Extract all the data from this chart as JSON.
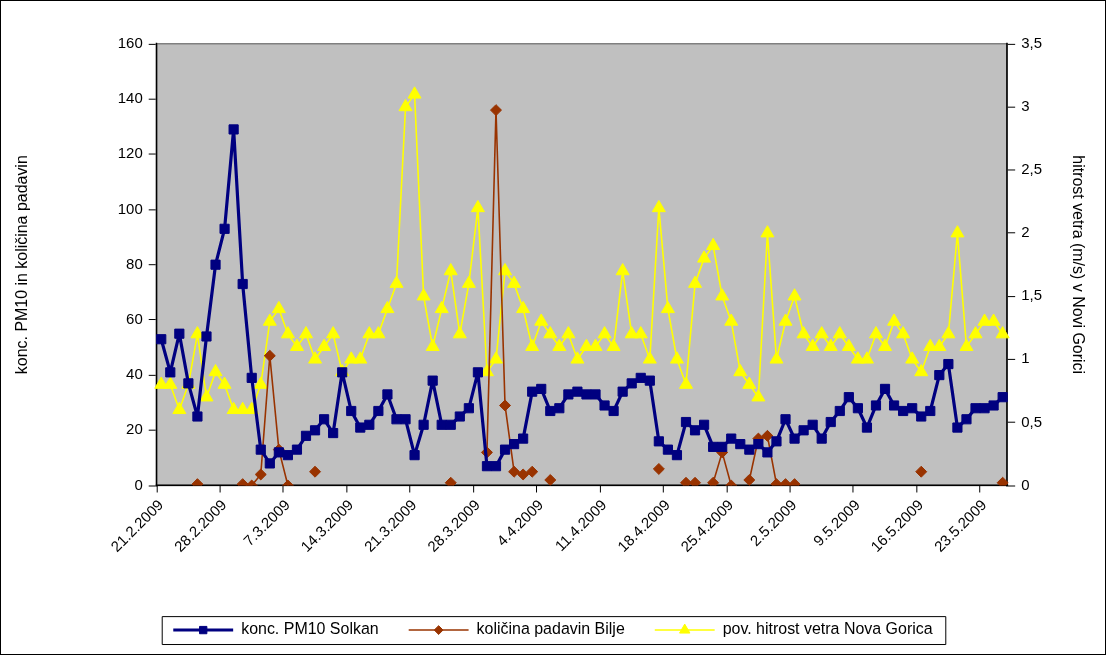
{
  "chart_data": {
    "type": "line",
    "ylabel": "konc. PM10 in količina padavin",
    "y2label": "hitrost vetra (m/s) v Novi Gorici",
    "categories": [
      "21.2.2009",
      null,
      null,
      null,
      null,
      null,
      null,
      "28.2.2009",
      null,
      null,
      null,
      null,
      null,
      null,
      "7.3.2009",
      null,
      null,
      null,
      null,
      null,
      null,
      "14.3.2009",
      null,
      null,
      null,
      null,
      null,
      null,
      "21.3.2009",
      null,
      null,
      null,
      null,
      null,
      null,
      "28.3.2009",
      null,
      null,
      null,
      null,
      null,
      null,
      "4.4.2009",
      null,
      null,
      null,
      null,
      null,
      null,
      "11.4.2009",
      null,
      null,
      null,
      null,
      null,
      null,
      "18.4.2009",
      null,
      null,
      null,
      null,
      null,
      null,
      "25.4.2009",
      null,
      null,
      null,
      null,
      null,
      null,
      "2.5.2009",
      null,
      null,
      null,
      null,
      null,
      null,
      "9.5.2009",
      null,
      null,
      null,
      null,
      null,
      null,
      "16.5.2009",
      null,
      null,
      null,
      null,
      null,
      null,
      "23.5.2009",
      null,
      null
    ],
    "series": [
      {
        "name": "konc. PM10 Solkan",
        "color": "#000080",
        "marker": "square",
        "values": [
          53,
          41,
          55,
          37,
          25,
          54,
          80,
          93,
          129,
          73,
          39,
          13,
          8,
          12,
          11,
          13,
          18,
          20,
          24,
          19,
          41,
          27,
          21,
          22,
          27,
          33,
          24,
          24,
          11,
          22,
          38,
          22,
          22,
          25,
          28,
          41,
          7,
          7,
          13,
          15,
          17,
          34,
          35,
          27,
          28,
          33,
          34,
          33,
          33,
          29,
          27,
          34,
          37,
          39,
          38,
          16,
          13,
          11,
          23,
          20,
          22,
          14,
          14,
          17,
          15,
          13,
          15,
          12,
          16,
          24,
          17,
          20,
          22,
          17,
          23,
          27,
          32,
          28,
          21,
          29,
          35,
          29,
          27,
          28,
          25,
          27,
          40,
          44,
          21,
          24,
          28,
          28,
          29,
          32
        ]
      },
      {
        "name": "količina padavin Bilje",
        "color": "#993300",
        "marker": "diamond",
        "values": [
          null,
          null,
          null,
          null,
          0.5,
          null,
          null,
          null,
          null,
          0.5,
          0,
          4,
          47,
          13,
          0,
          null,
          null,
          5,
          null,
          null,
          null,
          null,
          null,
          null,
          null,
          null,
          null,
          null,
          null,
          null,
          null,
          null,
          1,
          null,
          null,
          null,
          12,
          136,
          29,
          5,
          4,
          5,
          null,
          2,
          null,
          null,
          null,
          null,
          null,
          null,
          null,
          null,
          null,
          null,
          null,
          6,
          null,
          null,
          1,
          1,
          null,
          1,
          12,
          0,
          null,
          2,
          17,
          18,
          0.5,
          0.5,
          0.5,
          null,
          null,
          null,
          null,
          null,
          null,
          null,
          null,
          null,
          null,
          null,
          null,
          null,
          5,
          null,
          null,
          null,
          null,
          null,
          null,
          null,
          null,
          1
        ]
      },
      {
        "name": "pov. hitrost vetra Nova Gorica",
        "color": "#ffff00",
        "marker": "triangle",
        "axis": "y2",
        "values": [
          0.8,
          0.8,
          0.6,
          0.8,
          1.2,
          0.7,
          0.9,
          0.8,
          0.6,
          0.6,
          0.6,
          0.8,
          1.3,
          1.4,
          1.2,
          1.1,
          1.2,
          1.0,
          1.1,
          1.2,
          0.9,
          1.0,
          1.0,
          1.2,
          1.2,
          1.4,
          1.6,
          3.0,
          3.1,
          1.5,
          1.1,
          1.4,
          1.7,
          1.2,
          1.6,
          2.2,
          0.9,
          1.0,
          1.7,
          1.6,
          1.4,
          1.1,
          1.3,
          1.2,
          1.1,
          1.2,
          1.0,
          1.1,
          1.1,
          1.2,
          1.1,
          1.7,
          1.2,
          1.2,
          1.0,
          2.2,
          1.4,
          1.0,
          0.8,
          1.6,
          1.8,
          1.9,
          1.5,
          1.3,
          0.9,
          0.8,
          0.7,
          2.0,
          1.0,
          1.3,
          1.5,
          1.2,
          1.1,
          1.2,
          1.1,
          1.2,
          1.1,
          1.0,
          1.0,
          1.2,
          1.1,
          1.3,
          1.2,
          1.0,
          0.9,
          1.1,
          1.1,
          1.2,
          2.0,
          1.1,
          1.2,
          1.3,
          1.3,
          1.2
        ]
      }
    ],
    "ylim": [
      0,
      160
    ],
    "yticks": [
      0,
      20,
      40,
      60,
      80,
      100,
      120,
      140,
      160
    ],
    "y2lim": [
      0,
      3.5
    ],
    "y2ticks": [
      0,
      {
        "value": 0.5,
        "label": "0,5"
      },
      1,
      {
        "value": 1.5,
        "label": "1,5"
      },
      2,
      {
        "value": 2.5,
        "label": "2,5"
      },
      3,
      {
        "value": 3.5,
        "label": "3,5"
      }
    ],
    "legend": "bottom"
  }
}
